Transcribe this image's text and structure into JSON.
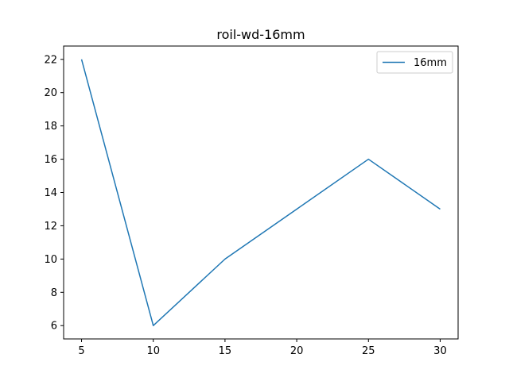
{
  "chart_data": {
    "type": "line",
    "title": "roil-wd-16mm",
    "xlabel": "",
    "ylabel": "",
    "x": [
      5,
      10,
      15,
      20,
      25,
      30
    ],
    "xlim": [
      3.75,
      31.25
    ],
    "ylim": [
      5.2,
      22.8
    ],
    "xticks": [
      5,
      10,
      15,
      20,
      25,
      30
    ],
    "yticks": [
      6,
      8,
      10,
      12,
      14,
      16,
      18,
      20,
      22
    ],
    "grid": false,
    "legend_position": "top-right",
    "series": [
      {
        "name": "16mm",
        "color": "#1f77b4",
        "values": [
          22,
          6,
          10,
          13,
          16,
          13
        ]
      }
    ]
  }
}
